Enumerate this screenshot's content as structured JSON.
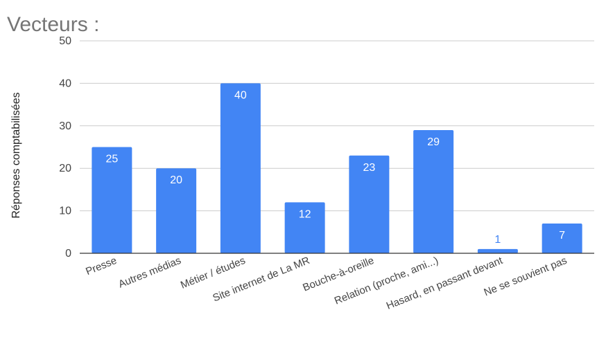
{
  "chart_data": {
    "type": "bar",
    "title": "Vecteurs :",
    "xlabel": "",
    "ylabel": "Réponses comptabilisées",
    "ylim": [
      0,
      50
    ],
    "yticks": [
      0,
      10,
      20,
      30,
      40,
      50
    ],
    "grid": true,
    "legend": "none",
    "categories": [
      "Presse",
      "Autres médias",
      "Métier / études",
      "Site internet de La MR",
      "Bouche-à-oreille",
      "Relation (proche, ami...)",
      "Hasard, en passant devant",
      "Ne se souvient pas"
    ],
    "values": [
      25,
      20,
      40,
      12,
      23,
      29,
      1,
      7
    ],
    "bar_color": "#4285f4",
    "label_inside_color": "#ffffff",
    "label_outside_color": "#4285f4"
  }
}
